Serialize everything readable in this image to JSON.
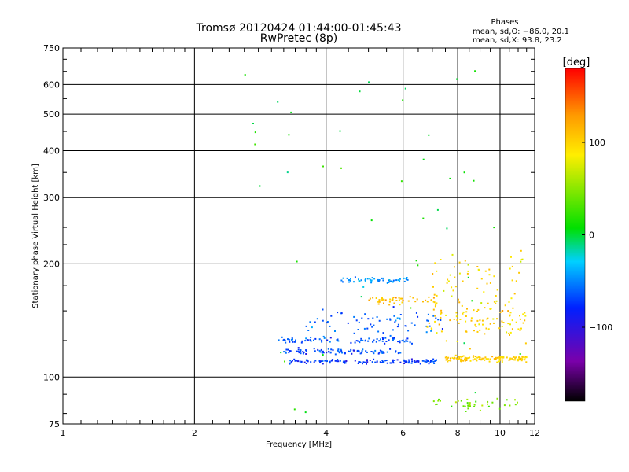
{
  "chart_data": {
    "type": "scatter",
    "title": "Tromsø 20120424 01:44:00-01:45:43",
    "subtitle": "RwPretec (8p)",
    "xlabel": "Frequency [MHz]",
    "ylabel": "Stationary phase Virtual Height [km]",
    "x_scale": "log",
    "y_scale": "log",
    "xlim": [
      1,
      12
    ],
    "ylim": [
      75,
      750
    ],
    "x_ticks": [
      1,
      2,
      4,
      6,
      8,
      10,
      12
    ],
    "x_tick_labels": [
      "1",
      "2",
      "4",
      "6",
      "8",
      "10",
      "12"
    ],
    "y_ticks": [
      75,
      100,
      200,
      300,
      400,
      500,
      600,
      750
    ],
    "y_tick_labels": [
      "75",
      "100",
      "200",
      "300",
      "400",
      "500",
      "600",
      "750"
    ],
    "grid": true,
    "stats": {
      "heading": "Phases",
      "line_o": "mean, sd,O: −86.0, 20.1",
      "line_x": "mean, sd,X:  93.8, 23.2"
    },
    "colorbar": {
      "label": "[deg]",
      "range": [
        -180,
        180
      ],
      "ticks": [
        100,
        0,
        -100
      ],
      "tick_labels": [
        "100",
        "0",
        "−100"
      ]
    },
    "colors": {
      "very_low": "#000000",
      "low": "#7a00aa",
      "blue": "#0040ff",
      "cyan": "#00c8ff",
      "green": "#00e000",
      "yellow": "#ffee00",
      "orange": "#ff9900",
      "red": "#ff0000"
    },
    "series": [
      {
        "trace": "O-mode lower trace ~ 110 km",
        "x_range": [
          3.3,
          7.2
        ],
        "y": 110,
        "spread": 1.5,
        "phase": -95,
        "count": 130
      },
      {
        "trace": "O-mode trace ~ 117 km",
        "x_range": [
          3.2,
          6.0
        ],
        "y": 117,
        "spread": 2.0,
        "phase": -90,
        "count": 90
      },
      {
        "trace": "O-mode trace ~ 125 km",
        "x_range": [
          3.1,
          6.3
        ],
        "y": 125,
        "spread": 2.5,
        "phase": -85,
        "count": 80
      },
      {
        "trace": "O-mode diffuse ~ 140 km",
        "x_range": [
          3.6,
          7.5
        ],
        "y": 140,
        "spread": 10,
        "phase": -80,
        "count": 70
      },
      {
        "trace": "O-mode upper band ~ 180 km",
        "x_range": [
          4.3,
          6.2
        ],
        "y": 181,
        "spread": 3,
        "phase": -60,
        "count": 55
      },
      {
        "trace": "X-mode trace ~ 112 km",
        "x_range": [
          7.5,
          11.5
        ],
        "y": 112,
        "spread": 2,
        "phase": 100,
        "count": 120
      },
      {
        "trace": "X-mode diffuse ~ 145 km",
        "x_range": [
          6.8,
          11.5
        ],
        "y": 145,
        "spread": 20,
        "phase": 95,
        "count": 110
      },
      {
        "trace": "X-mode band ~ 160 km",
        "x_range": [
          5.0,
          7.2
        ],
        "y": 160,
        "spread": 4,
        "phase": 110,
        "count": 50
      },
      {
        "trace": "X-mode diffuse ~ 190 km",
        "x_range": [
          7.0,
          11.5
        ],
        "y": 190,
        "spread": 25,
        "phase": 90,
        "count": 50
      },
      {
        "trace": "mixed low echoes ~ 85 km",
        "x_range": [
          7.0,
          11.0
        ],
        "y": 85,
        "spread": 4,
        "phase": 40,
        "count": 40
      },
      {
        "trace": "scattered noise",
        "x_range": [
          2.5,
          11.5
        ],
        "y": 300,
        "spread": 250,
        "phase": 0,
        "count": 45
      }
    ]
  }
}
